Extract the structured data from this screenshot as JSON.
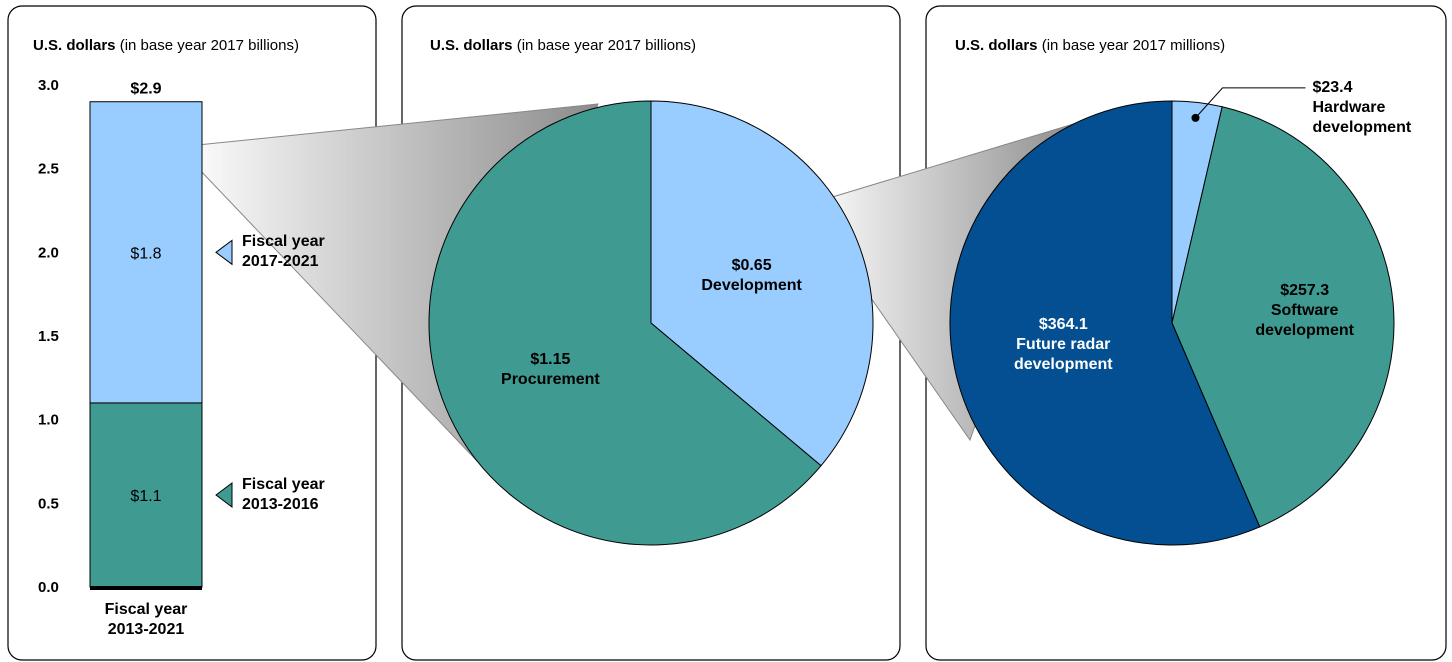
{
  "chart_data": [
    {
      "type": "bar",
      "unit": "U.S. dollars",
      "unit_note": "(in base year 2017 billions)",
      "categories": [
        "Fiscal year 2013-2021"
      ],
      "series": [
        {
          "name": "Fiscal year 2013-2016",
          "color": "#3f9a91",
          "values": [
            1.1
          ],
          "value_labels": [
            "$1.1"
          ]
        },
        {
          "name": "Fiscal year 2017-2021",
          "color": "#99ccff",
          "values": [
            1.8
          ],
          "value_labels": [
            "$1.8"
          ]
        }
      ],
      "totals": [
        2.9
      ],
      "total_labels": [
        "$2.9"
      ],
      "ylim": [
        0,
        3
      ],
      "yticks": [
        {
          "value": 0,
          "label": "0.0"
        },
        0.5,
        {
          "value": 1,
          "label": "1.0"
        },
        1.5,
        {
          "value": 2,
          "label": "2.0"
        },
        2.5,
        {
          "value": 3,
          "label": "3.0"
        }
      ]
    },
    {
      "type": "pie",
      "unit": "U.S. dollars",
      "unit_note": "(in base year 2017 billions)",
      "categories": [
        "Development",
        "Procurement"
      ],
      "values": [
        0.65,
        1.15
      ],
      "value_labels": [
        "$0.65",
        "$1.15"
      ],
      "colors": [
        "#99ccff",
        "#3f9a91"
      ]
    },
    {
      "type": "pie",
      "unit": "U.S. dollars",
      "unit_note": "(in base year 2017 millions)",
      "categories": [
        "Hardware development",
        "Software development",
        "Future radar development"
      ],
      "values": [
        23.4,
        257.3,
        364.1
      ],
      "value_labels": [
        "$23.4",
        "$257.3",
        "$364.1"
      ],
      "colors": [
        "#99ccff",
        "#3f9a91",
        "#034f91"
      ]
    }
  ]
}
